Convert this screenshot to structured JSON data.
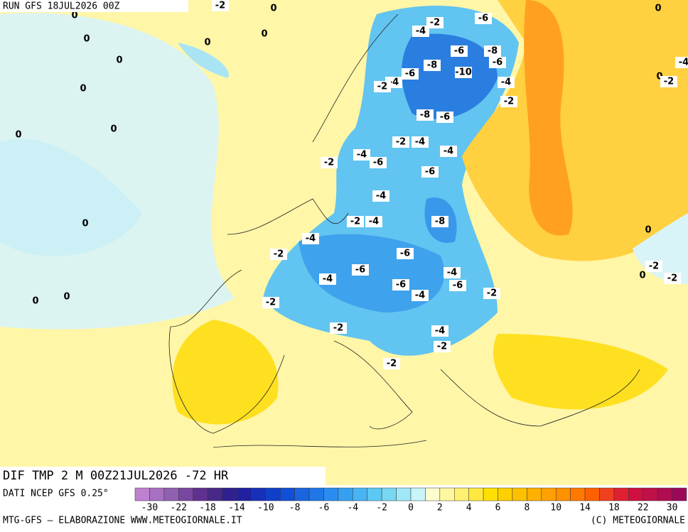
{
  "header": {
    "run": "RUN GFS 18JUL2026 00Z"
  },
  "map": {
    "title": "DIF TMP 2 M 00Z21JUL2026 -72 HR",
    "contour_labels": [
      "-2",
      "0",
      "0",
      "0",
      "0",
      "0",
      "0",
      "0",
      "0",
      "0",
      "-2",
      "-4",
      "-6",
      "-6",
      "-8",
      "-6",
      "-8",
      "-10",
      "-6",
      "-4",
      "-2",
      "-4",
      "-2",
      "-8",
      "-6",
      "0",
      "-4",
      "0",
      "-2",
      "-2",
      "-4",
      "-4",
      "-4",
      "-6",
      "-2",
      "-6",
      "-4",
      "-2",
      "-4",
      "-8",
      "0",
      "-4",
      "-2",
      "-6",
      "0",
      "-6",
      "-4",
      "-4",
      "-6",
      "-6",
      "-4",
      "-2",
      "0",
      "-2",
      "-2",
      "0",
      "0",
      "-2",
      "-2",
      "-4",
      "-2",
      "-2"
    ]
  },
  "legend": {
    "source": "DATI NCEP GFS 0.25°",
    "colors": [
      "#c080d0",
      "#a870c0",
      "#9060b0",
      "#7848a0",
      "#603090",
      "#482888",
      "#302090",
      "#2020a0",
      "#1830b8",
      "#1040c8",
      "#1050d8",
      "#1a64e0",
      "#2078e8",
      "#2a8cf0",
      "#36a0f0",
      "#48b4f4",
      "#5cc8f4",
      "#78d8f4",
      "#a0e8f8",
      "#c8f4fa",
      "#fffcd0",
      "#fff8a0",
      "#fff070",
      "#ffe840",
      "#ffe000",
      "#ffd000",
      "#ffc000",
      "#ffb000",
      "#ffa000",
      "#ff9000",
      "#ff7800",
      "#ff6000",
      "#f04020",
      "#e02030",
      "#d01040",
      "#c01048",
      "#b00c50",
      "#9c0858"
    ],
    "ticks": [
      -30,
      -22,
      -18,
      -14,
      -10,
      -8,
      -6,
      -4,
      -2,
      0,
      2,
      4,
      6,
      8,
      10,
      14,
      18,
      22,
      30
    ]
  },
  "footer": {
    "left": "MTG-GFS — ELABORAZIONE WWW.METEOGIORNALE.IT",
    "right": "(C) METEOGIORNALE"
  }
}
